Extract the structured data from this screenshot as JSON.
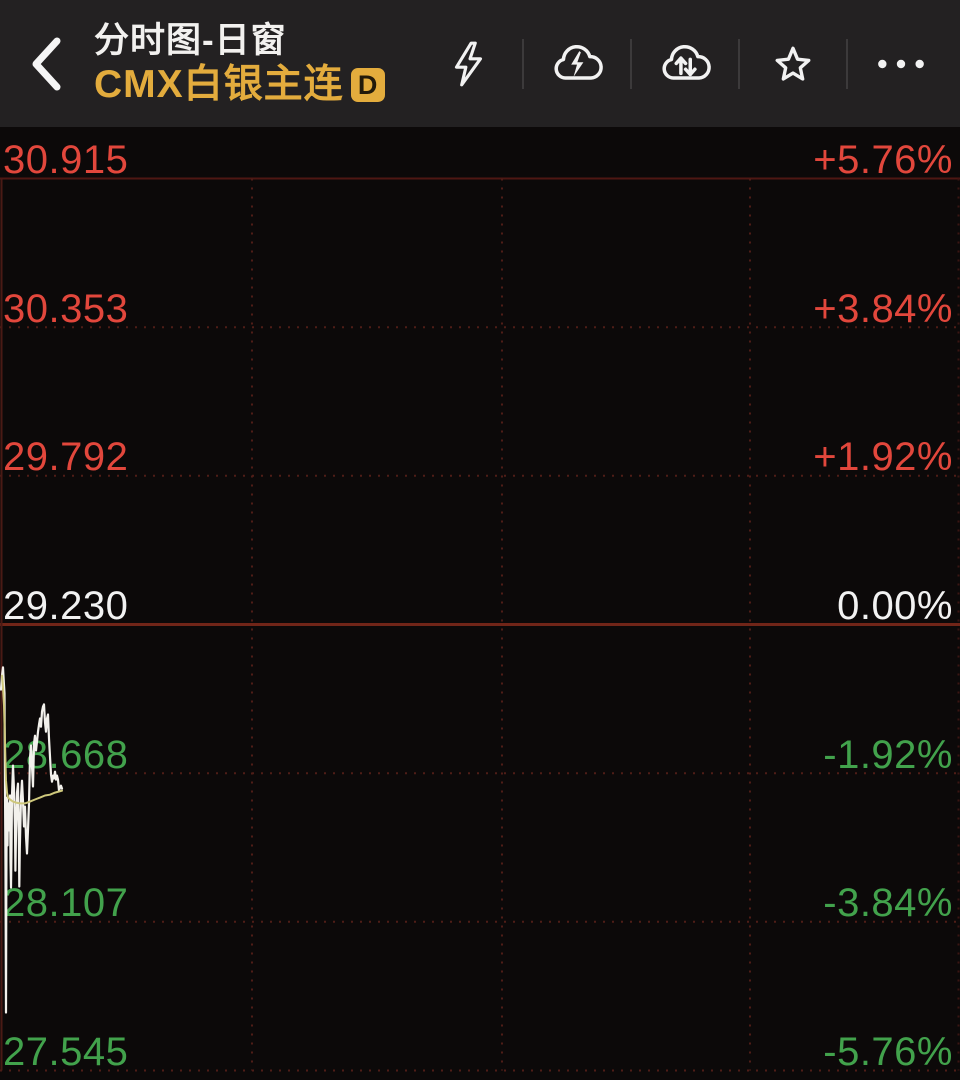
{
  "header": {
    "back_label": "back",
    "title": "分时图-日窗",
    "subtitle": "CMX白银主连",
    "subtitle_badge": "D",
    "actions": [
      "flash",
      "cloud-flash",
      "cloud-transfer",
      "favorite",
      "more"
    ]
  },
  "chart_data": {
    "type": "line",
    "title": "CMX白银主连 分时图-日窗",
    "instrument": "CMX白银主连",
    "prev_close": 29.23,
    "ylim": [
      27.545,
      30.915
    ],
    "y_axis_left_prices": [
      "30.915",
      "30.353",
      "29.792",
      "29.230",
      "28.668",
      "28.107",
      "27.545"
    ],
    "y_axis_right_percent": [
      "+5.76%",
      "+3.84%",
      "+1.92%",
      "0.00%",
      "-1.92%",
      "-3.84%",
      "-5.76%"
    ],
    "grid": {
      "h_lines": 7,
      "v_lines": 3,
      "style": "red-dashed"
    },
    "legend_position": "none",
    "series": [
      {
        "name": "price",
        "color": "#f3f1ec",
        "width": 2.2,
        "points": [
          [
            1,
            28.984
          ],
          [
            2,
            29.037
          ],
          [
            3,
            29.068
          ],
          [
            4,
            29.0
          ],
          [
            4.5,
            28.97
          ],
          [
            5,
            28.61
          ],
          [
            5.5,
            28.3
          ],
          [
            6,
            27.764
          ],
          [
            6.3,
            28.21
          ],
          [
            6.6,
            28.43
          ],
          [
            7,
            28.576
          ],
          [
            7.5,
            28.395
          ],
          [
            8,
            28.554
          ],
          [
            9,
            28.452
          ],
          [
            10,
            28.584
          ],
          [
            10.5,
            28.334
          ],
          [
            11,
            28.236
          ],
          [
            11.5,
            28.38
          ],
          [
            12,
            28.584
          ],
          [
            13,
            28.697
          ],
          [
            14,
            28.606
          ],
          [
            15,
            28.455
          ],
          [
            15.4,
            28.3
          ],
          [
            16,
            28.44
          ],
          [
            17,
            28.595
          ],
          [
            18,
            28.629
          ],
          [
            19,
            28.38
          ],
          [
            19.3,
            28.24
          ],
          [
            19.8,
            28.383
          ],
          [
            21,
            28.576
          ],
          [
            22,
            28.64
          ],
          [
            23,
            28.561
          ],
          [
            24,
            28.467
          ],
          [
            25,
            28.542
          ],
          [
            26,
            28.429
          ],
          [
            27,
            28.365
          ],
          [
            28,
            28.455
          ],
          [
            29,
            28.554
          ],
          [
            30,
            28.727
          ],
          [
            31,
            28.773
          ],
          [
            32,
            28.693
          ],
          [
            33,
            28.618
          ],
          [
            34,
            28.78
          ],
          [
            35,
            28.81
          ],
          [
            36,
            28.754
          ],
          [
            37,
            28.788
          ],
          [
            38,
            28.825
          ],
          [
            39,
            28.852
          ],
          [
            40,
            28.875
          ],
          [
            41,
            28.844
          ],
          [
            42,
            28.901
          ],
          [
            43,
            28.92
          ],
          [
            44,
            28.928
          ],
          [
            45,
            28.86
          ],
          [
            46,
            28.825
          ],
          [
            47,
            28.875
          ],
          [
            48,
            28.89
          ],
          [
            49,
            28.799
          ],
          [
            50,
            28.731
          ],
          [
            51,
            28.663
          ],
          [
            52,
            28.636
          ],
          [
            53,
            28.659
          ],
          [
            54,
            28.648
          ],
          [
            55,
            28.674
          ],
          [
            56,
            28.644
          ],
          [
            57,
            28.659
          ],
          [
            58,
            28.644
          ],
          [
            59,
            28.602
          ],
          [
            60,
            28.614
          ],
          [
            61,
            28.621
          ],
          [
            62,
            28.61
          ]
        ]
      },
      {
        "name": "average",
        "color": "#cfc87c",
        "width": 2,
        "points": [
          [
            2,
            29.037
          ],
          [
            3,
            28.992
          ],
          [
            4,
            28.924
          ],
          [
            5,
            28.78
          ],
          [
            6,
            28.64
          ],
          [
            7,
            28.595
          ],
          [
            8,
            28.576
          ],
          [
            10,
            28.569
          ],
          [
            13,
            28.561
          ],
          [
            16,
            28.557
          ],
          [
            20,
            28.554
          ],
          [
            25,
            28.554
          ],
          [
            30,
            28.561
          ],
          [
            35,
            28.569
          ],
          [
            40,
            28.576
          ],
          [
            45,
            28.584
          ],
          [
            50,
            28.587
          ],
          [
            55,
            28.595
          ],
          [
            59,
            28.599
          ],
          [
            62,
            28.602
          ]
        ]
      }
    ]
  },
  "colors": {
    "up_red": "#e2473c",
    "down_green": "#42a24c",
    "neutral_white": "#f2f2f2",
    "accent_gold": "#e3ac3d",
    "grid_red": "#4f1d17",
    "zero_line_red": "#712518",
    "header_bg": "#232122",
    "chart_bg": "#0c0909",
    "price_line": "#f3f1ec",
    "average_line": "#cfc87c"
  }
}
